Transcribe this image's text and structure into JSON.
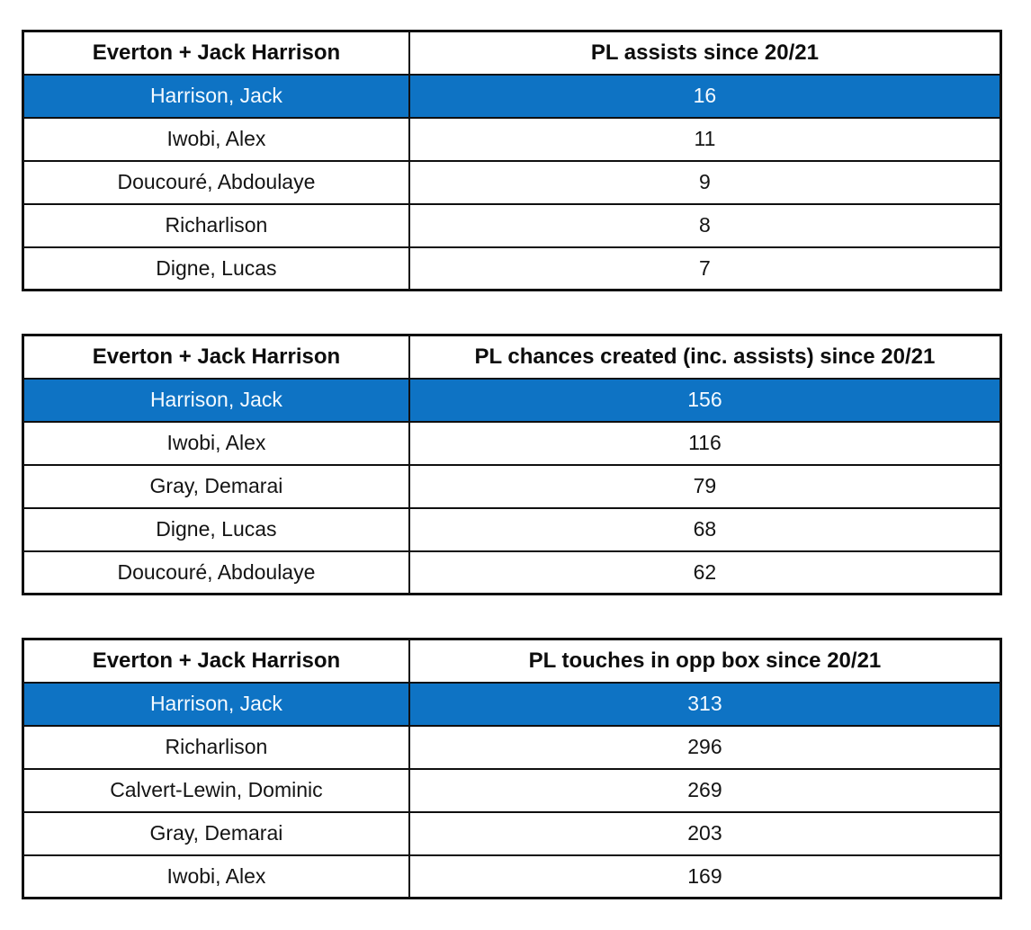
{
  "colors": {
    "highlight_bg": "#0e73c4",
    "highlight_text": "#f4faff",
    "border": "#0f0f0f",
    "text": "#141414",
    "background": "#ffffff"
  },
  "chart_data": [
    {
      "type": "table",
      "columns": [
        "Everton + Jack Harrison",
        "PL assists since 20/21"
      ],
      "rows": [
        {
          "player": "Harrison, Jack",
          "value": 16,
          "highlight": true
        },
        {
          "player": "Iwobi, Alex",
          "value": 11,
          "highlight": false
        },
        {
          "player": "Doucouré, Abdoulaye",
          "value": 9,
          "highlight": false
        },
        {
          "player": "Richarlison",
          "value": 8,
          "highlight": false
        },
        {
          "player": "Digne, Lucas",
          "value": 7,
          "highlight": false
        }
      ]
    },
    {
      "type": "table",
      "columns": [
        "Everton + Jack Harrison",
        "PL chances created (inc. assists) since 20/21"
      ],
      "rows": [
        {
          "player": "Harrison, Jack",
          "value": 156,
          "highlight": true
        },
        {
          "player": "Iwobi, Alex",
          "value": 116,
          "highlight": false
        },
        {
          "player": "Gray, Demarai",
          "value": 79,
          "highlight": false
        },
        {
          "player": "Digne, Lucas",
          "value": 68,
          "highlight": false
        },
        {
          "player": "Doucouré, Abdoulaye",
          "value": 62,
          "highlight": false
        }
      ]
    },
    {
      "type": "table",
      "columns": [
        "Everton + Jack Harrison",
        "PL touches in opp box since 20/21"
      ],
      "rows": [
        {
          "player": "Harrison, Jack",
          "value": 313,
          "highlight": true
        },
        {
          "player": "Richarlison",
          "value": 296,
          "highlight": false
        },
        {
          "player": "Calvert-Lewin, Dominic",
          "value": 269,
          "highlight": false
        },
        {
          "player": "Gray, Demarai",
          "value": 203,
          "highlight": false
        },
        {
          "player": "Iwobi, Alex",
          "value": 169,
          "highlight": false
        }
      ]
    }
  ]
}
